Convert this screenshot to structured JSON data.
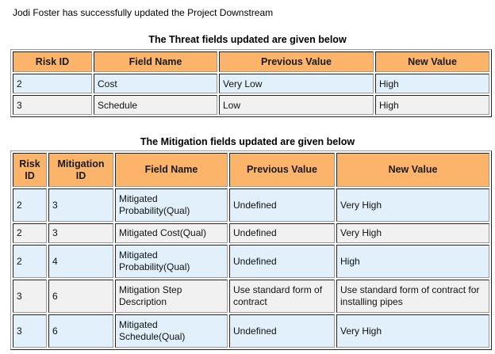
{
  "message": "Jodi Foster has successfully updated the Project Downstream",
  "threat": {
    "caption": "The Threat fields updated are given below",
    "headers": [
      "Risk ID",
      "Field Name",
      "Previous Value",
      "New Value"
    ],
    "rows": [
      [
        "2",
        "Cost",
        "Very Low",
        "High"
      ],
      [
        "3",
        "Schedule",
        "Low",
        "High"
      ]
    ]
  },
  "mitigation": {
    "caption": "The Mitigation fields updated are given below",
    "headers": [
      "Risk ID",
      "Mitigation ID",
      "Field Name",
      "Previous Value",
      "New Value"
    ],
    "rows": [
      [
        "2",
        "3",
        "Mitigated Probability(Qual)",
        "Undefined",
        "Very High"
      ],
      [
        "2",
        "3",
        "Mitigated Cost(Qual)",
        "Undefined",
        "Very High"
      ],
      [
        "2",
        "4",
        "Mitigated Probability(Qual)",
        "Undefined",
        "High"
      ],
      [
        "3",
        "6",
        "Mitigation Step Description",
        "Use standard form of contract",
        "Use standard form of contract for installing pipes"
      ],
      [
        "3",
        "6",
        "Mitigated Schedule(Qual)",
        "Undefined",
        "Very High"
      ]
    ]
  },
  "colors": {
    "header_bg": "#fbb46a",
    "row_odd_bg": "#e1f0fb",
    "row_even_bg": "#f1f1f1"
  }
}
